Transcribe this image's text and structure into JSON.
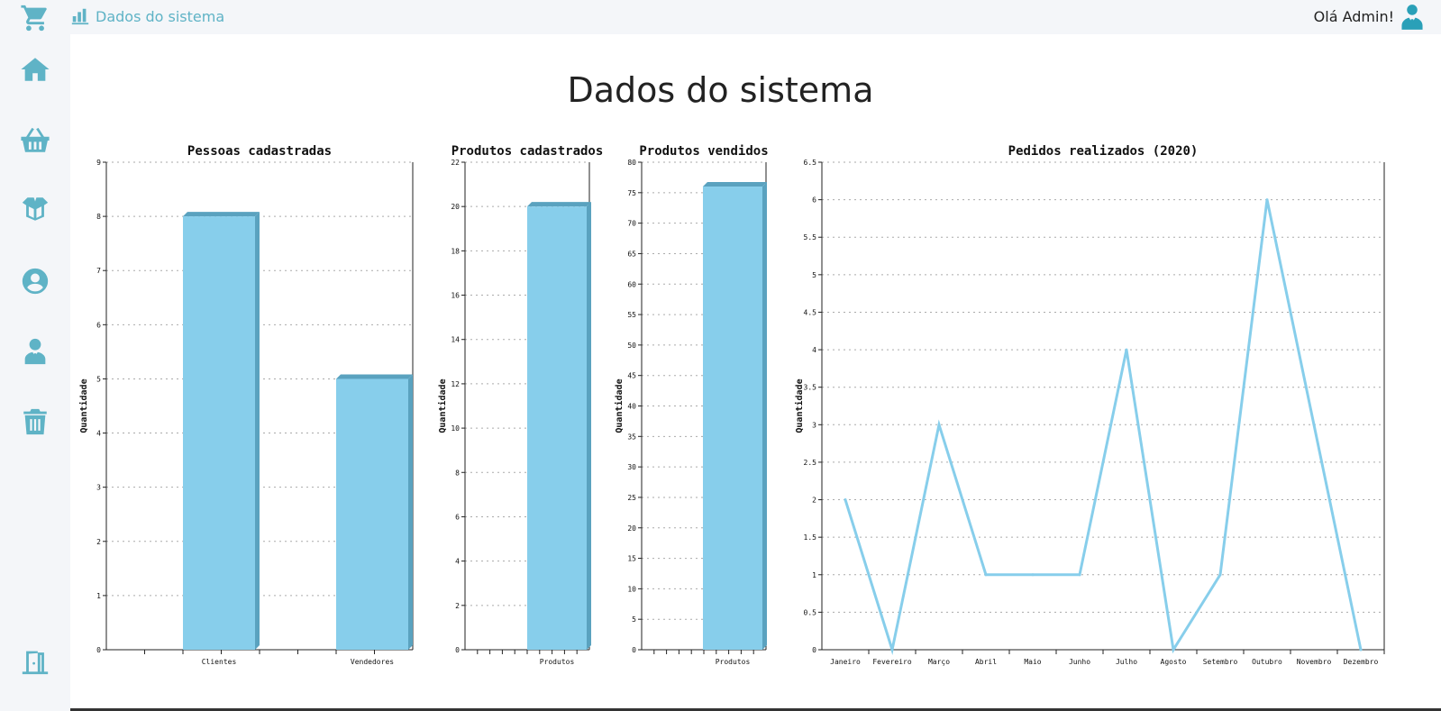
{
  "topbar": {
    "brand_label": "Dados do sistema",
    "greeting": "Olá Admin!"
  },
  "sidebar": {
    "icons": [
      "cart-icon",
      "home-icon",
      "basket-icon",
      "box-icon",
      "user-circle-icon",
      "employee-icon",
      "trash-icon",
      "exit-door-icon"
    ]
  },
  "page": {
    "title": "Dados do sistema"
  },
  "colors": {
    "accent": "#5fb3c6",
    "bar": "#87ceeb",
    "bar_side": "#5aa2bf",
    "line": "#87ceeb"
  },
  "chart_data": [
    {
      "type": "bar",
      "title": "Pessoas cadastradas",
      "ylabel": "Quantidade",
      "xlabel": "",
      "categories": [
        "Clientes",
        "Vendedores"
      ],
      "values": [
        8,
        5
      ],
      "ylim": [
        0,
        9
      ],
      "yticks": [
        0,
        1,
        2,
        3,
        4,
        5,
        6,
        7,
        8,
        9
      ],
      "grid": true
    },
    {
      "type": "bar",
      "title": "Produtos cadastrados",
      "ylabel": "Quantidade",
      "xlabel": "",
      "categories": [
        "Produtos"
      ],
      "values": [
        20
      ],
      "ylim": [
        0,
        22
      ],
      "yticks": [
        0,
        2,
        4,
        6,
        8,
        10,
        12,
        14,
        16,
        18,
        20,
        22
      ],
      "grid": true
    },
    {
      "type": "bar",
      "title": "Produtos vendidos",
      "ylabel": "Quantidade",
      "xlabel": "",
      "categories": [
        "Produtos"
      ],
      "values": [
        76
      ],
      "ylim": [
        0,
        80
      ],
      "yticks": [
        0,
        5,
        10,
        15,
        20,
        25,
        30,
        35,
        40,
        45,
        50,
        55,
        60,
        65,
        70,
        75,
        80
      ],
      "grid": true
    },
    {
      "type": "line",
      "title": "Pedidos realizados (2020)",
      "ylabel": "Quantidade",
      "xlabel": "",
      "categories": [
        "Janeiro",
        "Fevereiro",
        "Março",
        "Abril",
        "Maio",
        "Junho",
        "Julho",
        "Agosto",
        "Setembro",
        "Outubro",
        "Novembro",
        "Dezembro"
      ],
      "values": [
        2,
        0,
        3,
        1,
        1,
        1,
        4,
        0,
        1,
        6,
        3,
        0
      ],
      "ylim": [
        0,
        6.5
      ],
      "yticks": [
        0,
        0.5,
        1,
        1.5,
        2,
        2.5,
        3,
        3.5,
        4,
        4.5,
        5,
        5.5,
        6,
        6.5
      ],
      "grid": true
    }
  ]
}
